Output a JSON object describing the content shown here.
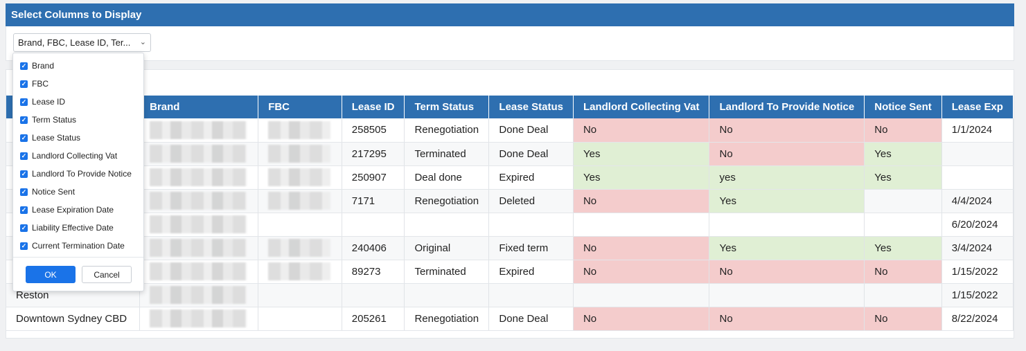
{
  "panel": {
    "title": "Select Columns to Display"
  },
  "column_select": {
    "value": "Brand, FBC, Lease ID, Ter...",
    "chevron": "chevron-down-icon"
  },
  "dropdown": {
    "items": [
      {
        "label": "Brand",
        "checked": true
      },
      {
        "label": "FBC",
        "checked": true
      },
      {
        "label": "Lease ID",
        "checked": true
      },
      {
        "label": "Term Status",
        "checked": true
      },
      {
        "label": "Lease Status",
        "checked": true
      },
      {
        "label": "Landlord Collecting Vat",
        "checked": true
      },
      {
        "label": "Landlord To Provide Notice",
        "checked": true
      },
      {
        "label": "Notice Sent",
        "checked": true
      },
      {
        "label": "Lease Expiration Date",
        "checked": true
      },
      {
        "label": "Liability Effective Date",
        "checked": true
      },
      {
        "label": "Current Termination Date",
        "checked": true
      }
    ],
    "ok_label": "OK",
    "cancel_label": "Cancel"
  },
  "grid": {
    "headers": [
      "",
      "Brand",
      "FBC",
      "Lease ID",
      "Term Status",
      "Lease Status",
      "Landlord Collecting Vat",
      "Landlord To Provide Notice",
      "Notice Sent",
      "Lease Exp"
    ],
    "rows": [
      {
        "name": "",
        "lease_id": "258505",
        "term_status": "Renegotiation",
        "lease_status": "Done Deal",
        "vat": "No",
        "notice": "No",
        "sent": "No",
        "exp": "1/1/2024"
      },
      {
        "name": "",
        "lease_id": "217295",
        "term_status": "Terminated",
        "lease_status": "Done Deal",
        "vat": "Yes",
        "notice": "No",
        "sent": "Yes",
        "exp": ""
      },
      {
        "name": "",
        "lease_id": "250907",
        "term_status": "Deal done",
        "lease_status": "Expired",
        "vat": "Yes",
        "notice": "yes",
        "sent": "Yes",
        "exp": ""
      },
      {
        "name": "",
        "lease_id": "7171",
        "term_status": "Renegotiation",
        "lease_status": "Deleted",
        "vat": "No",
        "notice": "Yes",
        "sent": "",
        "exp": "4/4/2024"
      },
      {
        "name": "",
        "lease_id": "",
        "term_status": "",
        "lease_status": "",
        "vat": "",
        "notice": "",
        "sent": "",
        "exp": "6/20/2024"
      },
      {
        "name": "",
        "lease_id": "240406",
        "term_status": "Original",
        "lease_status": "Fixed term",
        "vat": "No",
        "notice": "Yes",
        "sent": "Yes",
        "exp": "3/4/2024"
      },
      {
        "name": "",
        "lease_id": "89273",
        "term_status": "Terminated",
        "lease_status": "Expired",
        "vat": "No",
        "notice": "No",
        "sent": "No",
        "exp": "1/15/2022"
      },
      {
        "name": "Reston",
        "lease_id": "",
        "term_status": "",
        "lease_status": "",
        "vat": "",
        "notice": "",
        "sent": "",
        "exp": "1/15/2022"
      },
      {
        "name": "Downtown Sydney CBD",
        "lease_id": "205261",
        "term_status": "Renegotiation",
        "lease_status": "Done Deal",
        "vat": "No",
        "notice": "No",
        "sent": "No",
        "exp": "8/22/2024"
      }
    ],
    "colors": {
      "no": "#f4cccc",
      "yes": "#e0efd4",
      "header": "#2e6fb0"
    }
  }
}
